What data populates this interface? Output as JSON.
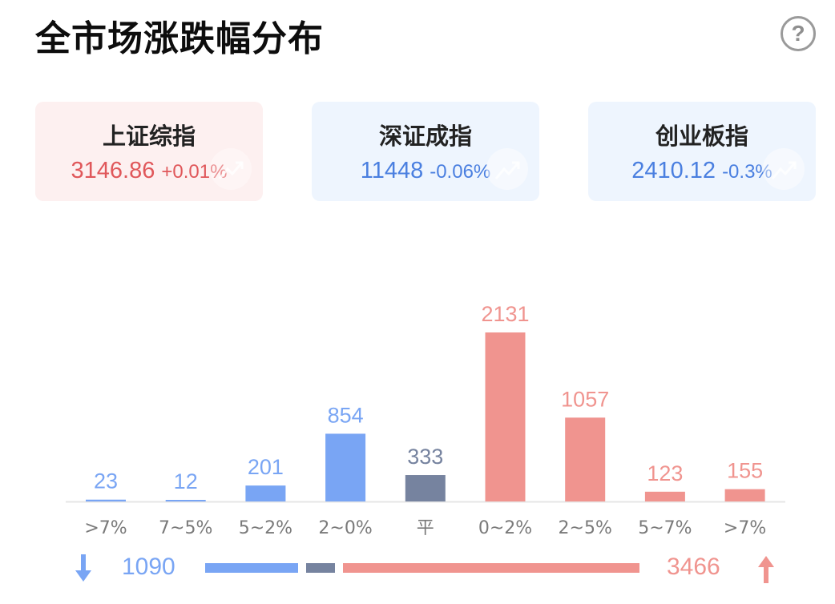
{
  "header": {
    "title": "全市场涨跌幅分布",
    "help_icon": "help-circle-icon",
    "help_glyph": "?"
  },
  "indices": [
    {
      "name": "上证综指",
      "value": "3146.86",
      "change": "+0.01%",
      "trend": "up",
      "deco_icon": "trend-up-watermark-icon"
    },
    {
      "name": "深证成指",
      "value": "11448",
      "change": "-0.06%",
      "trend": "down",
      "deco_icon": "trend-up-watermark-icon"
    },
    {
      "name": "创业板指",
      "value": "2410.12",
      "change": "-0.3%",
      "trend": "down",
      "deco_icon": "trend-up-watermark-icon"
    }
  ],
  "colors": {
    "down": "#79a5f4",
    "flat": "#76839f",
    "up": "#f0948f",
    "axis": "#e6e6e6",
    "tick_label": "#7a7a7a"
  },
  "chart_data": {
    "type": "bar",
    "categories": [
      ">7%",
      "7~5%",
      "5~2%",
      "2~0%",
      "平",
      "0~2%",
      "2~5%",
      "5~7%",
      ">7%"
    ],
    "values": [
      23,
      12,
      201,
      854,
      333,
      2131,
      1057,
      123,
      155
    ],
    "groups": [
      "down",
      "down",
      "down",
      "down",
      "flat",
      "up",
      "up",
      "up",
      "up"
    ],
    "data_labels": [
      "23",
      "12",
      "201",
      "854",
      "333",
      "2131",
      "1057",
      "123",
      "155"
    ],
    "grid": false,
    "legend": "none"
  },
  "summary": {
    "down_count": "1090",
    "flat_count": 333,
    "up_count": "3466",
    "down_icon": "arrow-down-icon",
    "up_icon": "arrow-up-icon"
  }
}
